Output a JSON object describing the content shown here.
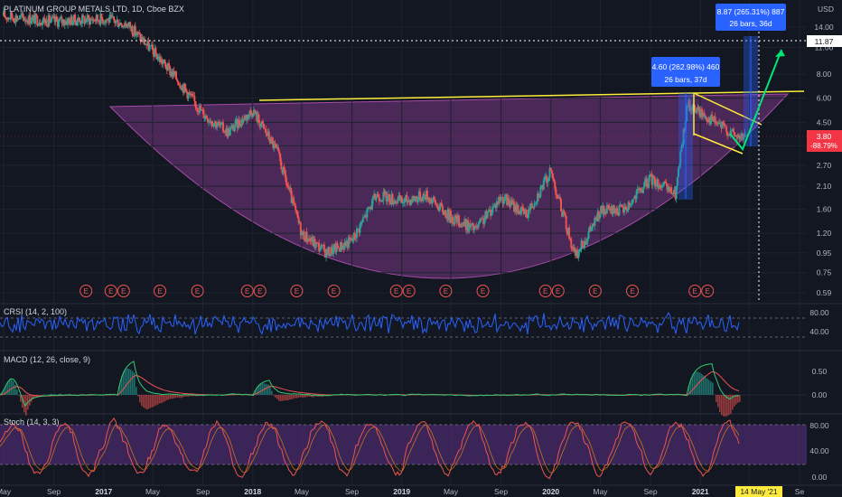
{
  "header": {
    "symbol_title": "PLATINUM GROUP METALS LTD, 1D, Cboe BZX",
    "currency": "USD"
  },
  "price_axis": {
    "ticks": [
      "14.00",
      "11.00",
      "8.00",
      "6.00",
      "4.50",
      "3.40",
      "2.70",
      "2.10",
      "1.60",
      "1.20",
      "0.95",
      "0.75",
      "0.59"
    ],
    "last_price": "11.87",
    "current_price": "3.80",
    "current_change": "-88.79%"
  },
  "time_axis": {
    "labels": [
      "May",
      "Sep",
      "2017",
      "May",
      "Sep",
      "2018",
      "May",
      "Sep",
      "2019",
      "May",
      "Sep",
      "2020",
      "May",
      "Sep",
      "2021",
      "May",
      "Se"
    ],
    "cursor_label": "14 May '21"
  },
  "measures": [
    {
      "line1": "4.60 (262.98%) 460",
      "line2": "26 bars, 37d"
    },
    {
      "line1": "8.87 (265.31%) 887",
      "line2": "26 bars, 36d"
    }
  ],
  "earnings_marker": "E",
  "indicators": {
    "crsi": {
      "title": "CRSI (14, 2, 100)",
      "ticks": [
        "80.00",
        "40.00"
      ]
    },
    "macd": {
      "title": "MACD (12, 26, close, 9)",
      "ticks": [
        "0.50",
        "0.00"
      ]
    },
    "stoch": {
      "title": "Stoch (14, 3, 3)",
      "ticks": [
        "80.00",
        "40.00",
        "0.00"
      ]
    }
  },
  "colors": {
    "background": "#131722",
    "up": "#26a69a",
    "down": "#ef5350",
    "cup_fill": "#5d2f6b",
    "yellow": "#ffeb3b",
    "measure_blue": "#2962ff",
    "price_red": "#f23645",
    "crsi_line": "#2962ff",
    "macd_line": "#2ecc71",
    "signal_line": "#ef5350",
    "stoch_k": "#ef5350",
    "stoch_band": "#4a2a6b",
    "arrow_green": "#00e676"
  },
  "chart_data": {
    "type": "candlestick",
    "title": "PLATINUM GROUP METALS LTD, 1D, Cboe BZX",
    "y_scale": "log",
    "ylim": [
      0.55,
      16
    ],
    "x_range": [
      "2016-05",
      "2021-09"
    ],
    "price_path": [
      {
        "x": "2016-05",
        "y": 16.0
      },
      {
        "x": "2016-09",
        "y": 15.0
      },
      {
        "x": "2017-01",
        "y": 15.5
      },
      {
        "x": "2017-03",
        "y": 14.5
      },
      {
        "x": "2017-05",
        "y": 10.5
      },
      {
        "x": "2017-07",
        "y": 7.5
      },
      {
        "x": "2017-09",
        "y": 5.0
      },
      {
        "x": "2017-11",
        "y": 4.0
      },
      {
        "x": "2018-01",
        "y": 5.2
      },
      {
        "x": "2018-03",
        "y": 3.2
      },
      {
        "x": "2018-05",
        "y": 1.2
      },
      {
        "x": "2018-07",
        "y": 0.95
      },
      {
        "x": "2018-09",
        "y": 1.1
      },
      {
        "x": "2018-11",
        "y": 1.9
      },
      {
        "x": "2019-01",
        "y": 1.75
      },
      {
        "x": "2019-03",
        "y": 1.9
      },
      {
        "x": "2019-05",
        "y": 1.45
      },
      {
        "x": "2019-07",
        "y": 1.25
      },
      {
        "x": "2019-09",
        "y": 1.85
      },
      {
        "x": "2019-11",
        "y": 1.5
      },
      {
        "x": "2020-01",
        "y": 2.5
      },
      {
        "x": "2020-03",
        "y": 0.9
      },
      {
        "x": "2020-05",
        "y": 1.55
      },
      {
        "x": "2020-07",
        "y": 1.6
      },
      {
        "x": "2020-09",
        "y": 2.3
      },
      {
        "x": "2020-11",
        "y": 1.9
      },
      {
        "x": "2020-12",
        "y": 5.6
      },
      {
        "x": "2021-02",
        "y": 4.6
      },
      {
        "x": "2021-04",
        "y": 3.8
      }
    ],
    "last_price": 3.8,
    "change_percent": -88.79,
    "target_line": 11.87,
    "earnings_dates": [
      "2016-11",
      "2017-01",
      "2017-02",
      "2017-05",
      "2017-08",
      "2017-12",
      "2018-01",
      "2018-04",
      "2018-07",
      "2018-12",
      "2019-01",
      "2019-04",
      "2019-07",
      "2019-12",
      "2020-01",
      "2020-04",
      "2020-07",
      "2020-12",
      "2021-01"
    ],
    "patterns": {
      "cup_bottom_price": 0.59,
      "neckline": [
        {
          "x": "2018-01",
          "y": 5.5
        },
        {
          "x": "2021-09",
          "y": 6.4
        }
      ],
      "pennant_apex": {
        "x": "2021-05",
        "y": 4.2
      }
    },
    "measures": [
      {
        "change": 4.6,
        "percent": 262.98,
        "ticks": 460,
        "bars": 26,
        "days": 37
      },
      {
        "change": 8.87,
        "percent": 265.31,
        "ticks": 887,
        "bars": 26,
        "days": 36
      }
    ],
    "indicators": {
      "crsi": {
        "params": [
          14,
          2,
          100
        ],
        "levels": [
          80,
          40
        ]
      },
      "macd": {
        "params": [
          12,
          26,
          "close",
          9
        ]
      },
      "stoch": {
        "params": [
          14,
          3,
          3
        ],
        "levels": [
          80,
          20
        ]
      }
    }
  }
}
